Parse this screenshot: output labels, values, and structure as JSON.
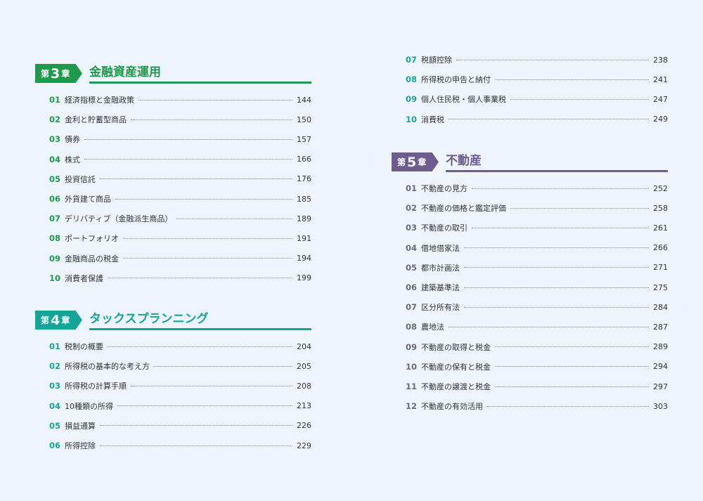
{
  "chapters": [
    {
      "prefix": "第",
      "number": "3",
      "suffix": "章",
      "title": "金融資産運用",
      "color": "#1e9a4c",
      "items": [
        {
          "num": "01",
          "title": "経済指標と金融政策",
          "page": 144
        },
        {
          "num": "02",
          "title": "金利と貯蓄型商品",
          "page": 150
        },
        {
          "num": "03",
          "title": "債券",
          "page": 157
        },
        {
          "num": "04",
          "title": "株式",
          "page": 166
        },
        {
          "num": "05",
          "title": "投資信託",
          "page": 176
        },
        {
          "num": "06",
          "title": "外貨建て商品",
          "page": 185
        },
        {
          "num": "07",
          "title": "デリバティブ（金融派生商品）",
          "page": 189
        },
        {
          "num": "08",
          "title": "ポートフォリオ",
          "page": 191
        },
        {
          "num": "09",
          "title": "金融商品の税金",
          "page": 194
        },
        {
          "num": "10",
          "title": "消費者保護",
          "page": 199
        }
      ]
    },
    {
      "prefix": "第",
      "number": "4",
      "suffix": "章",
      "title": "タックスプランニング",
      "color": "#17a39a",
      "items": [
        {
          "num": "01",
          "title": "税制の概要",
          "page": 204
        },
        {
          "num": "02",
          "title": "所得税の基本的な考え方",
          "page": 205
        },
        {
          "num": "03",
          "title": "所得税の計算手順",
          "page": 208
        },
        {
          "num": "04",
          "title": "10種類の所得",
          "page": 213
        },
        {
          "num": "05",
          "title": "損益通算",
          "page": 226
        },
        {
          "num": "06",
          "title": "所得控除",
          "page": 229
        },
        {
          "num": "07",
          "title": "税額控除",
          "page": 238
        },
        {
          "num": "08",
          "title": "所得税の申告と納付",
          "page": 241
        },
        {
          "num": "09",
          "title": "個人住民税・個人事業税",
          "page": 247
        },
        {
          "num": "10",
          "title": "消費税",
          "page": 249
        }
      ]
    },
    {
      "prefix": "第",
      "number": "5",
      "suffix": "章",
      "title": "不動産",
      "color": "#6e5c8e",
      "items": [
        {
          "num": "01",
          "title": "不動産の見方",
          "page": 252
        },
        {
          "num": "02",
          "title": "不動産の価格と鑑定評価",
          "page": 258
        },
        {
          "num": "03",
          "title": "不動産の取引",
          "page": 261
        },
        {
          "num": "04",
          "title": "借地借家法",
          "page": 266
        },
        {
          "num": "05",
          "title": "都市計画法",
          "page": 271
        },
        {
          "num": "06",
          "title": "建築基準法",
          "page": 275
        },
        {
          "num": "07",
          "title": "区分所有法",
          "page": 284
        },
        {
          "num": "08",
          "title": "農地法",
          "page": 287
        },
        {
          "num": "09",
          "title": "不動産の取得と税金",
          "page": 289
        },
        {
          "num": "10",
          "title": "不動産の保有と税金",
          "page": 294
        },
        {
          "num": "11",
          "title": "不動産の譲渡と税金",
          "page": 297
        },
        {
          "num": "12",
          "title": "不動産の有効活用",
          "page": 303
        }
      ]
    }
  ]
}
